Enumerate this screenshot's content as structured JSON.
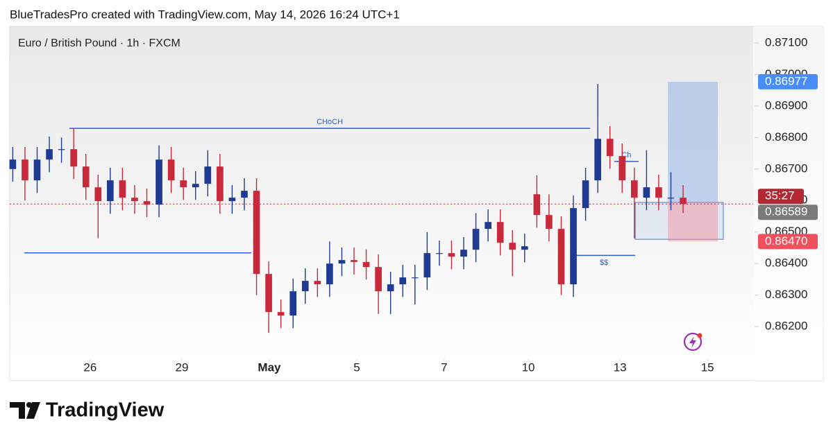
{
  "header": {
    "credit": "BlueTradesPro created with TradingView.com, May 14, 2026 16:24 UTC+1"
  },
  "chart_data": {
    "type": "candlestick",
    "title": "Euro / British Pound · 1h · FXCM",
    "up_color": "#1f3a93",
    "down_color": "#c8293b",
    "x": [
      0,
      4,
      8,
      12,
      16,
      20,
      24,
      28,
      32,
      36,
      40,
      44,
      48,
      52,
      56,
      60,
      64,
      68,
      72,
      76,
      80,
      84,
      88,
      92,
      96,
      100,
      104,
      108,
      112,
      116,
      120,
      124,
      128,
      132,
      136,
      140,
      144,
      148,
      152,
      156,
      160,
      164,
      168,
      172,
      176,
      180,
      184,
      188,
      192,
      196,
      200,
      204,
      208,
      212,
      216,
      220
    ],
    "open": [
      0.867,
      0.8673,
      0.86664,
      0.8673,
      0.86763,
      0.86763,
      0.86708,
      0.86642,
      0.86598,
      0.86664,
      0.86609,
      0.86598,
      0.86587,
      0.8673,
      0.86664,
      0.86642,
      0.86653,
      0.86708,
      0.86598,
      0.86609,
      0.86631,
      0.86367,
      0.86246,
      0.86235,
      0.86312,
      0.86345,
      0.86334,
      0.864,
      0.86411,
      0.86405,
      0.86389,
      0.86312,
      0.86334,
      0.86356,
      0.86356,
      0.86433,
      0.86433,
      0.86422,
      0.86444,
      0.8651,
      0.86532,
      0.86466,
      0.86444,
      0.8662,
      0.86554,
      0.8651,
      0.86334,
      0.86576,
      0.86664,
      0.86796,
      0.86741,
      0.86664,
      0.86609,
      0.86642,
      0.86609,
      0.86609
    ],
    "high": [
      0.8677,
      0.8677,
      0.8677,
      0.86803,
      0.868,
      0.86829,
      0.86748,
      0.86682,
      0.86704,
      0.86704,
      0.86649,
      0.86638,
      0.86775,
      0.8677,
      0.86704,
      0.86693,
      0.8676,
      0.86748,
      0.86649,
      0.86671,
      0.86671,
      0.86407,
      0.86286,
      0.86352,
      0.86385,
      0.86385,
      0.8647,
      0.86451,
      0.86451,
      0.86445,
      0.86429,
      0.86374,
      0.86396,
      0.86396,
      0.865,
      0.86473,
      0.86473,
      0.86484,
      0.8656,
      0.86572,
      0.86572,
      0.86506,
      0.86495,
      0.8668,
      0.8662,
      0.8655,
      0.86616,
      0.86704,
      0.8697,
      0.86836,
      0.86781,
      0.86704,
      0.8676,
      0.86682,
      0.8669,
      0.86649
    ],
    "low": [
      0.8666,
      0.866,
      0.86624,
      0.8669,
      0.8672,
      0.86668,
      0.86602,
      0.8648,
      0.86558,
      0.86569,
      0.86558,
      0.86547,
      0.86547,
      0.86624,
      0.86602,
      0.86602,
      0.86613,
      0.86558,
      0.86558,
      0.86569,
      0.863,
      0.8618,
      0.86195,
      0.86195,
      0.86272,
      0.86294,
      0.86294,
      0.8636,
      0.86365,
      0.86349,
      0.8624,
      0.8624,
      0.86294,
      0.8627,
      0.86316,
      0.86393,
      0.86382,
      0.86382,
      0.86404,
      0.8647,
      0.86426,
      0.8636,
      0.86404,
      0.86514,
      0.8647,
      0.863,
      0.86294,
      0.86536,
      0.86624,
      0.86701,
      0.86624,
      0.8648,
      0.86569,
      0.86569,
      0.86569,
      0.8656
    ],
    "close": [
      0.8673,
      0.86664,
      0.8673,
      0.86763,
      0.86763,
      0.86708,
      0.86642,
      0.86598,
      0.86664,
      0.86609,
      0.86598,
      0.86587,
      0.8673,
      0.86664,
      0.86642,
      0.86653,
      0.86708,
      0.86598,
      0.86609,
      0.86631,
      0.86367,
      0.86246,
      0.86235,
      0.86312,
      0.86345,
      0.86334,
      0.864,
      0.86411,
      0.86405,
      0.86389,
      0.86312,
      0.86334,
      0.86356,
      0.86356,
      0.86433,
      0.86433,
      0.86422,
      0.86444,
      0.8651,
      0.86532,
      0.86466,
      0.86444,
      0.86455,
      0.86554,
      0.8651,
      0.86334,
      0.86576,
      0.86664,
      0.86796,
      0.86741,
      0.86664,
      0.86609,
      0.86642,
      0.86609,
      0.86609,
      0.86589
    ],
    "xlim": [
      -1,
      243
    ],
    "xticks": [
      {
        "value": 25.4,
        "label": "26"
      },
      {
        "value": 55.5,
        "label": "29"
      },
      {
        "value": 84.2,
        "label": "May",
        "bold": true
      },
      {
        "value": 112.9,
        "label": "5"
      },
      {
        "value": 141.6,
        "label": "7"
      },
      {
        "value": 169.2,
        "label": "10"
      },
      {
        "value": 199.3,
        "label": "13"
      },
      {
        "value": 228,
        "label": "15"
      }
    ],
    "ylim": [
      0.8612,
      0.8715
    ],
    "yticks": [
      {
        "value": 0.862,
        "label": "0.86200"
      },
      {
        "value": 0.863,
        "label": "0.86300"
      },
      {
        "value": 0.864,
        "label": "0.86400"
      },
      {
        "value": 0.865,
        "label": "0.86500"
      },
      {
        "value": 0.866,
        "label": "0.86600"
      },
      {
        "value": 0.867,
        "label": "0.86700"
      },
      {
        "value": 0.868,
        "label": "0.86800"
      },
      {
        "value": 0.869,
        "label": "0.86900"
      },
      {
        "value": 0.87,
        "label": "0.87000"
      },
      {
        "value": 0.871,
        "label": "0.87100"
      }
    ],
    "lines": [
      {
        "label": "CHoCH",
        "price": 0.86829,
        "x": [
          18.6,
          189.5
        ],
        "color": "#2d5fd6"
      },
      {
        "price": 0.86434,
        "x": [
          3.8,
          78.3
        ],
        "color": "#2d5fd6"
      },
      {
        "label": "$$",
        "price": 0.86426,
        "x": [
          183.8,
          204.3
        ],
        "color": "#2d5fd6"
      },
      {
        "label": "Ch",
        "price": 0.86724,
        "x": [
          197.4,
          205.4
        ],
        "color": "#2d5fd6"
      }
    ],
    "zone": {
      "x": [
        204.3,
        233.2
      ],
      "top": 0.86594,
      "bottom": 0.86477,
      "color": "#5b8fe0"
    },
    "position": {
      "x": [
        215,
        231.4
      ],
      "entry": 0.86594,
      "target": 0.86977,
      "stop": 0.8647
    },
    "price_labels": [
      {
        "value": 0.86977,
        "label": "0.86977",
        "color": "#4a8cf5"
      },
      {
        "value": 0.8647,
        "label": "0.86470",
        "color": "#f0505e"
      }
    ],
    "last_price": {
      "value": 0.86589,
      "label": "0.86589",
      "color": "#7a7a7a",
      "countdown": "35:27",
      "countdown_color": "#b22833"
    }
  },
  "footer": {
    "brand": "TradingView"
  }
}
